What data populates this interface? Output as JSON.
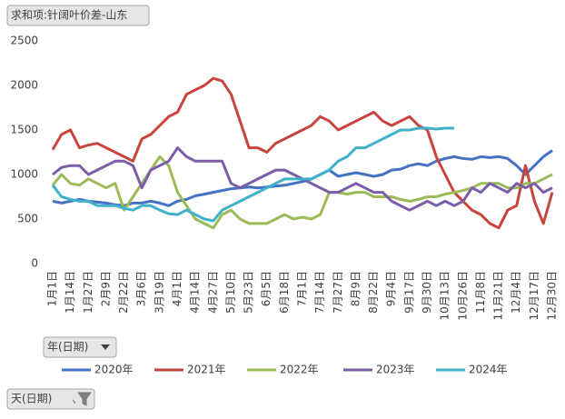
{
  "chart_data": {
    "type": "line",
    "value_field": "求和项:针阔叶价差-山东",
    "axis_field": "年(日期)",
    "row_field": "天(日期)",
    "categories": [
      "1月1日",
      null,
      "1月14日",
      null,
      "1月27日",
      null,
      "2月9日",
      null,
      "2月22日",
      null,
      "3月6日",
      null,
      "3月19日",
      null,
      "4月1日",
      null,
      "4月14日",
      null,
      "4月27日",
      null,
      "5月10日",
      null,
      "5月23日",
      null,
      "6月5日",
      null,
      "6月18日",
      null,
      "7月1日",
      null,
      "7月14日",
      null,
      "7月27日",
      null,
      "8月9日",
      null,
      "8月22日",
      null,
      "9月4日",
      null,
      "9月17日",
      null,
      "9月30日",
      null,
      "10月13日",
      null,
      "10月26日",
      null,
      "11月8日",
      null,
      "11月21日",
      null,
      "12月4日",
      null,
      "12月17日",
      null,
      "12月30日"
    ],
    "series": [
      {
        "name": "2020年",
        "color": "#4472c4",
        "values": [
          700,
          680,
          700,
          720,
          700,
          690,
          680,
          660,
          650,
          680,
          680,
          700,
          680,
          650,
          700,
          720,
          760,
          780,
          800,
          820,
          840,
          850,
          860,
          850,
          860,
          870,
          880,
          900,
          920,
          950,
          1000,
          1050,
          980,
          1000,
          1020,
          1000,
          980,
          1000,
          1050,
          1060,
          1100,
          1120,
          1100,
          1150,
          1180,
          1200,
          1180,
          1170,
          1200,
          1190,
          1200,
          1180,
          1100,
          1000,
          1100,
          1200,
          1270
        ]
      },
      {
        "name": "2021年",
        "color": "#c9443e",
        "values": [
          1280,
          1450,
          1500,
          1300,
          1330,
          1350,
          1300,
          1250,
          1200,
          1150,
          1400,
          1450,
          1550,
          1650,
          1700,
          1900,
          1950,
          2000,
          2080,
          2050,
          1900,
          1600,
          1300,
          1300,
          1250,
          1350,
          1400,
          1450,
          1500,
          1550,
          1650,
          1600,
          1500,
          1550,
          1600,
          1650,
          1700,
          1600,
          1550,
          1600,
          1650,
          1550,
          1500,
          1200,
          1000,
          800,
          700,
          600,
          550,
          450,
          400,
          600,
          650,
          1100,
          700,
          450,
          800
        ]
      },
      {
        "name": "2022年",
        "color": "#9bbb59",
        "values": [
          880,
          1000,
          900,
          880,
          950,
          900,
          850,
          900,
          600,
          750,
          900,
          1050,
          1200,
          1100,
          800,
          650,
          500,
          450,
          400,
          550,
          600,
          500,
          450,
          450,
          450,
          500,
          550,
          500,
          520,
          500,
          550,
          800,
          800,
          780,
          800,
          800,
          750,
          750,
          750,
          720,
          700,
          720,
          750,
          750,
          780,
          800,
          820,
          850,
          900,
          900,
          900,
          850,
          850,
          900,
          900,
          950,
          1000
        ]
      },
      {
        "name": "2023年",
        "color": "#7b5ea7",
        "values": [
          1000,
          1080,
          1100,
          1100,
          1000,
          1050,
          1100,
          1150,
          1150,
          1100,
          850,
          1050,
          1100,
          1150,
          1300,
          1200,
          1150,
          1150,
          1150,
          1150,
          900,
          850,
          900,
          950,
          1000,
          1050,
          1050,
          1000,
          950,
          900,
          850,
          800,
          800,
          850,
          900,
          850,
          800,
          800,
          700,
          650,
          600,
          650,
          700,
          650,
          700,
          650,
          700,
          850,
          800,
          900,
          850,
          800,
          900,
          850,
          900,
          800,
          850
        ]
      },
      {
        "name": "2024年",
        "color": "#3fb1ca",
        "values": [
          880,
          750,
          720,
          700,
          700,
          650,
          650,
          650,
          620,
          600,
          650,
          650,
          600,
          560,
          550,
          600,
          550,
          500,
          480,
          600,
          650,
          700,
          750,
          800,
          850,
          900,
          950,
          950,
          950,
          950,
          1000,
          1050,
          1150,
          1200,
          1300,
          1300,
          1350,
          1400,
          1450,
          1500,
          1500,
          1520,
          1520,
          1510,
          1520,
          1520,
          null,
          null,
          null,
          null,
          null,
          null,
          null,
          null,
          null,
          null,
          null
        ]
      }
    ],
    "ylim": [
      0,
      2500
    ],
    "yticks": [
      0,
      500,
      1000,
      1500,
      2000,
      2500
    ],
    "grid": false
  }
}
